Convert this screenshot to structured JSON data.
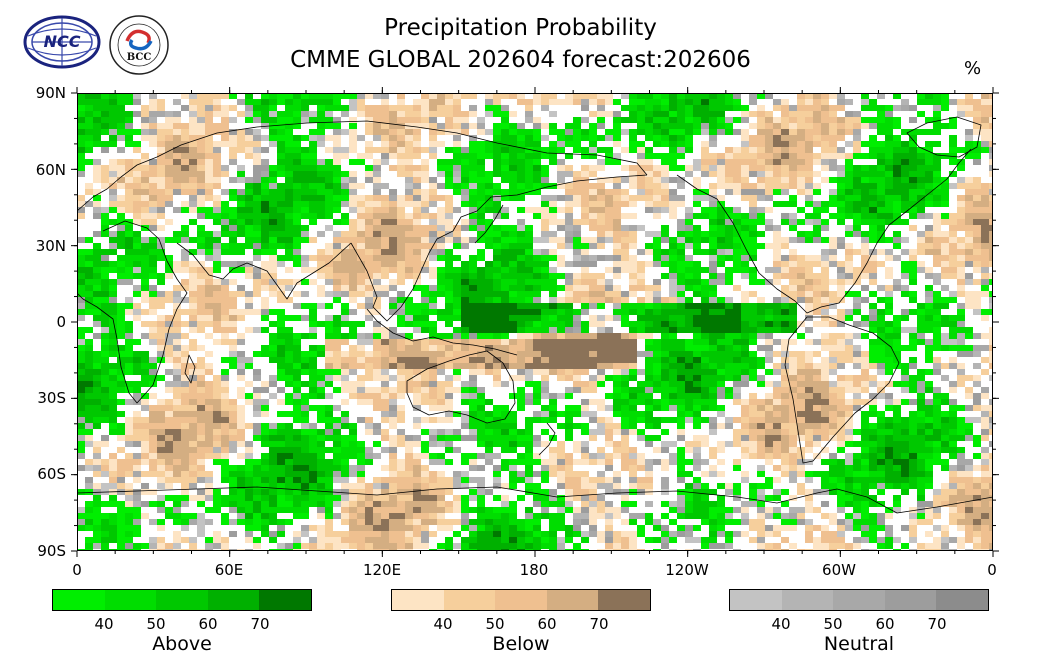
{
  "title_line1": "Precipitation Probability",
  "title_line2": "CMME GLOBAL 202604 forecast:202606",
  "unit": "%",
  "logos": [
    {
      "name": "ncc-logo",
      "text": "NCC"
    },
    {
      "name": "bcc-logo",
      "text": "BCC"
    }
  ],
  "axes": {
    "lat_labels": [
      "90N",
      "60N",
      "30N",
      "0",
      "30S",
      "60S",
      "90S"
    ],
    "lon_labels": [
      "0",
      "60E",
      "120E",
      "180",
      "120W",
      "60W",
      "0"
    ]
  },
  "legends": [
    {
      "name": "Above",
      "colors": [
        "#00ee00",
        "#00dd00",
        "#00c800",
        "#00b000",
        "#007800"
      ],
      "ticks": [
        "40",
        "50",
        "60",
        "70"
      ]
    },
    {
      "name": "Below",
      "colors": [
        "#fde4c4",
        "#f6cf9c",
        "#efc090",
        "#d4ae82",
        "#8b7258"
      ],
      "ticks": [
        "40",
        "50",
        "60",
        "70"
      ]
    },
    {
      "name": "Neutral",
      "colors": [
        "#c3c3c3",
        "#b4b4b4",
        "#a8a8a8",
        "#9d9d9d",
        "#8c8c8c"
      ],
      "ticks": [
        "40",
        "50",
        "60",
        "70"
      ]
    }
  ],
  "colors": {
    "land_outline": "#000000",
    "strong_above": "#007a00",
    "strong_below": "#8b7258"
  }
}
